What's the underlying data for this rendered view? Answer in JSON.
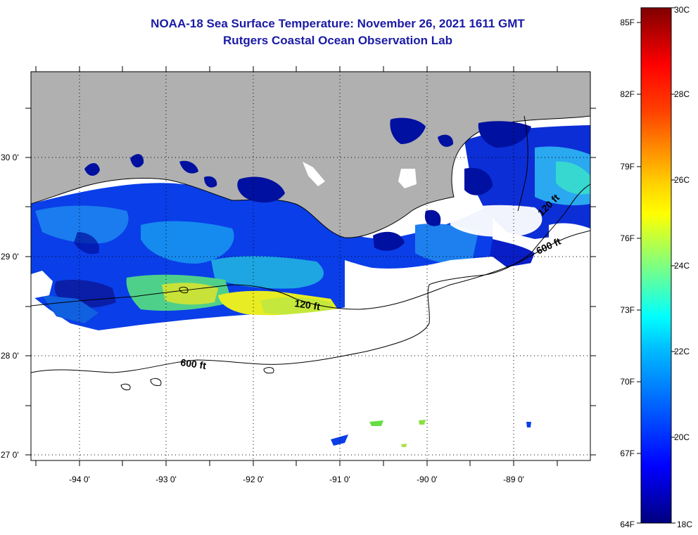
{
  "title": {
    "line1": "NOAA-18 Sea Surface Temperature:  November 26, 2021 1611 GMT",
    "line2": "Rutgers Coastal Ocean Observation Lab"
  },
  "map": {
    "lon_ticks": [
      "-94 0'",
      "-93 0'",
      "-92 0'",
      "-91 0'",
      "-90 0'",
      "-89 0'"
    ],
    "lat_ticks": [
      "30 0'",
      "29 0'",
      "28 0'",
      "27 0'"
    ],
    "lon_range": [
      -94.5,
      -88.2
    ],
    "lat_range": [
      26.95,
      30.85
    ],
    "grid": "dotted",
    "depth_contours": [
      "120 ft",
      "600 ft",
      "120 ft",
      "600 ft"
    ],
    "land_color": "#b0b0b0",
    "cloud_color": "#ffffff"
  },
  "colorbar": {
    "fahrenheit_labels": [
      "85F",
      "82F",
      "79F",
      "76F",
      "73F",
      "70F",
      "67F",
      "64F"
    ],
    "celsius_labels": [
      "30C",
      "28C",
      "26C",
      "24C",
      "22C",
      "20C",
      "18C"
    ],
    "min_celsius": 18,
    "max_celsius": 30,
    "colormap": "jet"
  }
}
